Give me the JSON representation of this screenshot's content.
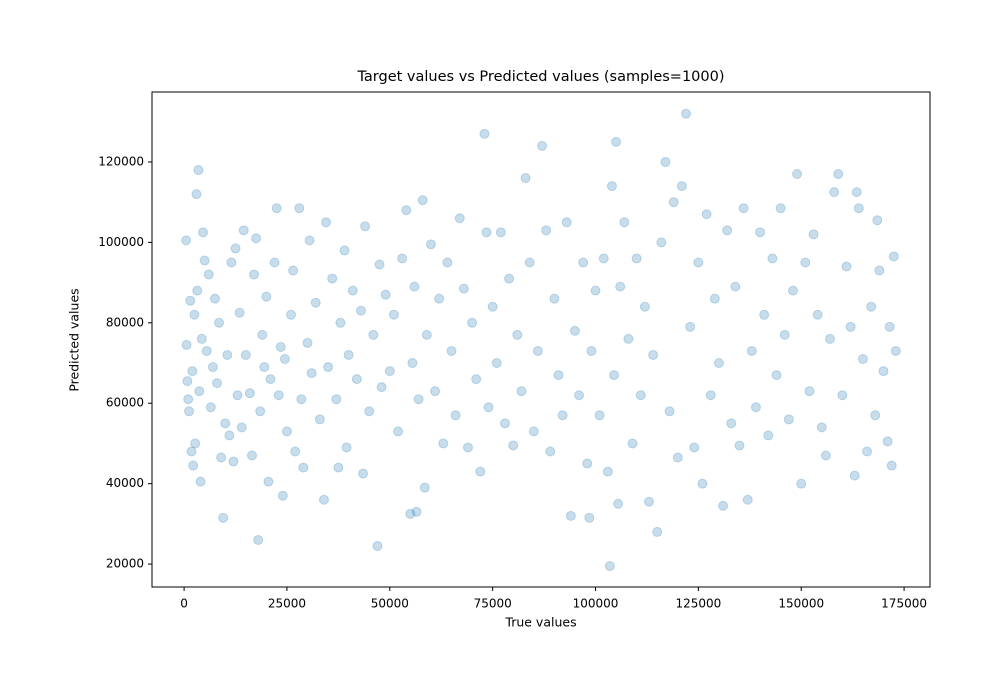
{
  "chart_data": {
    "type": "scatter",
    "title": "Target values vs Predicted values (samples=1000)",
    "x_label": "True values",
    "y_label": "Predicted values",
    "color": "#1f77b4",
    "alpha": 0.25,
    "xlim": [
      -7800,
      181300
    ],
    "ylim": [
      14300,
      137400
    ],
    "xticks": [
      0,
      25000,
      50000,
      75000,
      100000,
      125000,
      150000,
      175000
    ],
    "yticks": [
      20000,
      40000,
      60000,
      80000,
      100000,
      120000
    ],
    "grid": false,
    "x": [
      500,
      600,
      800,
      1000,
      1200,
      1500,
      1800,
      2000,
      2200,
      2500,
      2700,
      3000,
      3200,
      3500,
      3700,
      4000,
      4300,
      4600,
      5000,
      5500,
      6000,
      6500,
      7000,
      7500,
      8000,
      8500,
      9000,
      9500,
      10000,
      10500,
      11000,
      11500,
      12000,
      12500,
      13000,
      13500,
      14000,
      14500,
      15000,
      16000,
      16500,
      17000,
      17500,
      18000,
      18500,
      19000,
      19500,
      20000,
      20500,
      21000,
      22000,
      22500,
      23000,
      23500,
      24000,
      24500,
      25000,
      26000,
      26500,
      27000,
      28000,
      28500,
      29000,
      30000,
      30500,
      31000,
      32000,
      33000,
      34000,
      34500,
      35000,
      36000,
      37000,
      37500,
      38000,
      39000,
      39500,
      40000,
      41000,
      42000,
      43000,
      43500,
      44000,
      45000,
      46000,
      47000,
      47500,
      48000,
      49000,
      50000,
      51000,
      52000,
      53000,
      54000,
      55000,
      55500,
      56000,
      56500,
      57000,
      58000,
      58500,
      59000,
      60000,
      61000,
      62000,
      63000,
      64000,
      65000,
      66000,
      67000,
      68000,
      69000,
      70000,
      71000,
      72000,
      73000,
      73500,
      74000,
      75000,
      76000,
      77000,
      78000,
      79000,
      80000,
      81000,
      82000,
      83000,
      84000,
      85000,
      86000,
      87000,
      88000,
      89000,
      90000,
      91000,
      92000,
      93000,
      94000,
      95000,
      96000,
      97000,
      98000,
      98500,
      99000,
      100000,
      101000,
      102000,
      103000,
      103500,
      104000,
      104500,
      105000,
      105500,
      106000,
      107000,
      108000,
      109000,
      110000,
      111000,
      112000,
      113000,
      114000,
      115000,
      116000,
      117000,
      118000,
      119000,
      120000,
      121000,
      122000,
      123000,
      124000,
      125000,
      126000,
      127000,
      128000,
      129000,
      130000,
      131000,
      132000,
      133000,
      134000,
      135000,
      136000,
      137000,
      138000,
      139000,
      140000,
      141000,
      142000,
      143000,
      144000,
      145000,
      146000,
      147000,
      148000,
      149000,
      150000,
      151000,
      152000,
      153000,
      154000,
      155000,
      156000,
      157000,
      158000,
      159000,
      160000,
      161000,
      162000,
      163000,
      163500,
      164000,
      165000,
      166000,
      167000,
      168000,
      168500,
      169000,
      170000,
      171000,
      171500,
      172000,
      172500,
      173000
    ],
    "values": [
      100500,
      74500,
      65500,
      61000,
      58000,
      85500,
      48000,
      68000,
      44500,
      82000,
      50000,
      112000,
      88000,
      118000,
      63000,
      40500,
      76000,
      102500,
      95500,
      73000,
      92000,
      59000,
      69000,
      86000,
      65000,
      80000,
      46500,
      31500,
      55000,
      72000,
      52000,
      95000,
      45500,
      98500,
      62000,
      82500,
      54000,
      103000,
      72000,
      62500,
      47000,
      92000,
      101000,
      26000,
      58000,
      77000,
      69000,
      86500,
      40500,
      66000,
      95000,
      108500,
      62000,
      74000,
      37000,
      71000,
      53000,
      82000,
      93000,
      48000,
      108500,
      61000,
      44000,
      75000,
      100500,
      67500,
      85000,
      56000,
      36000,
      105000,
      69000,
      91000,
      61000,
      44000,
      80000,
      98000,
      49000,
      72000,
      88000,
      66000,
      83000,
      42500,
      104000,
      58000,
      77000,
      24500,
      94500,
      64000,
      87000,
      68000,
      82000,
      53000,
      96000,
      108000,
      32500,
      70000,
      89000,
      33000,
      61000,
      110500,
      39000,
      77000,
      99500,
      63000,
      86000,
      50000,
      95000,
      73000,
      57000,
      106000,
      88500,
      49000,
      80000,
      66000,
      43000,
      127000,
      102500,
      59000,
      84000,
      70000,
      102500,
      55000,
      91000,
      49500,
      77000,
      63000,
      116000,
      95000,
      53000,
      73000,
      124000,
      103000,
      48000,
      86000,
      67000,
      57000,
      105000,
      32000,
      78000,
      62000,
      95000,
      45000,
      31500,
      73000,
      88000,
      57000,
      96000,
      43000,
      19500,
      114000,
      67000,
      125000,
      35000,
      89000,
      105000,
      76000,
      50000,
      96000,
      62000,
      84000,
      35500,
      72000,
      28000,
      100000,
      120000,
      58000,
      110000,
      46500,
      114000,
      132000,
      79000,
      49000,
      95000,
      40000,
      107000,
      62000,
      86000,
      70000,
      34500,
      103000,
      55000,
      89000,
      49500,
      108500,
      36000,
      73000,
      59000,
      102500,
      82000,
      52000,
      96000,
      67000,
      108500,
      77000,
      56000,
      88000,
      117000,
      40000,
      95000,
      63000,
      102000,
      82000,
      54000,
      47000,
      76000,
      112500,
      117000,
      62000,
      94000,
      79000,
      42000,
      112500,
      108500,
      71000,
      48000,
      84000,
      57000,
      105500,
      93000,
      68000,
      50500,
      79000,
      44500,
      96500,
      73000
    ]
  }
}
